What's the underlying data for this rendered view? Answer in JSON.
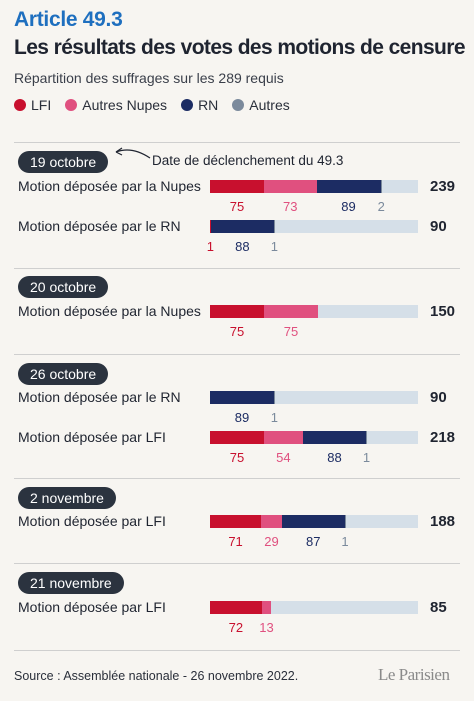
{
  "header": {
    "kicker": "Article 49.3",
    "title": "Les résultats des votes des motions de censure",
    "subtitle": "Répartition des suffrages sur les 289 requis"
  },
  "annotation": "Date de déclenchement du 49.3",
  "footer": {
    "source": "Source : Assemblée nationale - 26 novembre 2022.",
    "logo": "Le Parisien"
  },
  "chart_data": {
    "type": "bar",
    "title": "Les résultats des votes des motions de censure",
    "subtitle": "Répartition des suffrages sur les 289 requis",
    "scale_max": 289,
    "legend": [
      {
        "name": "LFI",
        "color": "#c8102e"
      },
      {
        "name": "Autres Nupes",
        "color": "#e0507f"
      },
      {
        "name": "RN",
        "color": "#1c2c63"
      },
      {
        "name": "Autres",
        "color": "#7b8a9c"
      }
    ],
    "groups": [
      {
        "date": "19 octobre",
        "motions": [
          {
            "label": "Motion déposée par la Nupes",
            "total": 239,
            "values": [
              {
                "series": "LFI",
                "value": 75
              },
              {
                "series": "Autres Nupes",
                "value": 73
              },
              {
                "series": "RN",
                "value": 89
              },
              {
                "series": "Autres",
                "value": 2
              }
            ]
          },
          {
            "label": "Motion déposée par le RN",
            "total": 90,
            "values": [
              {
                "series": "LFI",
                "value": 1
              },
              {
                "series": "RN",
                "value": 88
              },
              {
                "series": "Autres",
                "value": 1
              }
            ]
          }
        ]
      },
      {
        "date": "20 octobre",
        "motions": [
          {
            "label": "Motion déposée par la Nupes",
            "total": 150,
            "values": [
              {
                "series": "LFI",
                "value": 75
              },
              {
                "series": "Autres Nupes",
                "value": 75
              }
            ]
          }
        ]
      },
      {
        "date": "26 octobre",
        "motions": [
          {
            "label": "Motion déposée par le RN",
            "total": 90,
            "values": [
              {
                "series": "RN",
                "value": 89
              },
              {
                "series": "Autres",
                "value": 1
              }
            ]
          },
          {
            "label": "Motion déposée par LFI",
            "total": 218,
            "values": [
              {
                "series": "LFI",
                "value": 75
              },
              {
                "series": "Autres Nupes",
                "value": 54
              },
              {
                "series": "RN",
                "value": 88
              },
              {
                "series": "Autres",
                "value": 1
              }
            ]
          }
        ]
      },
      {
        "date": "2 novembre",
        "motions": [
          {
            "label": "Motion déposée par LFI",
            "total": 188,
            "values": [
              {
                "series": "LFI",
                "value": 71
              },
              {
                "series": "Autres Nupes",
                "value": 29
              },
              {
                "series": "RN",
                "value": 87
              },
              {
                "series": "Autres",
                "value": 1
              }
            ]
          }
        ]
      },
      {
        "date": "21 novembre",
        "motions": [
          {
            "label": "Motion déposée par LFI",
            "total": 85,
            "values": [
              {
                "series": "LFI",
                "value": 72
              },
              {
                "series": "Autres Nupes",
                "value": 13
              }
            ]
          }
        ]
      }
    ]
  }
}
